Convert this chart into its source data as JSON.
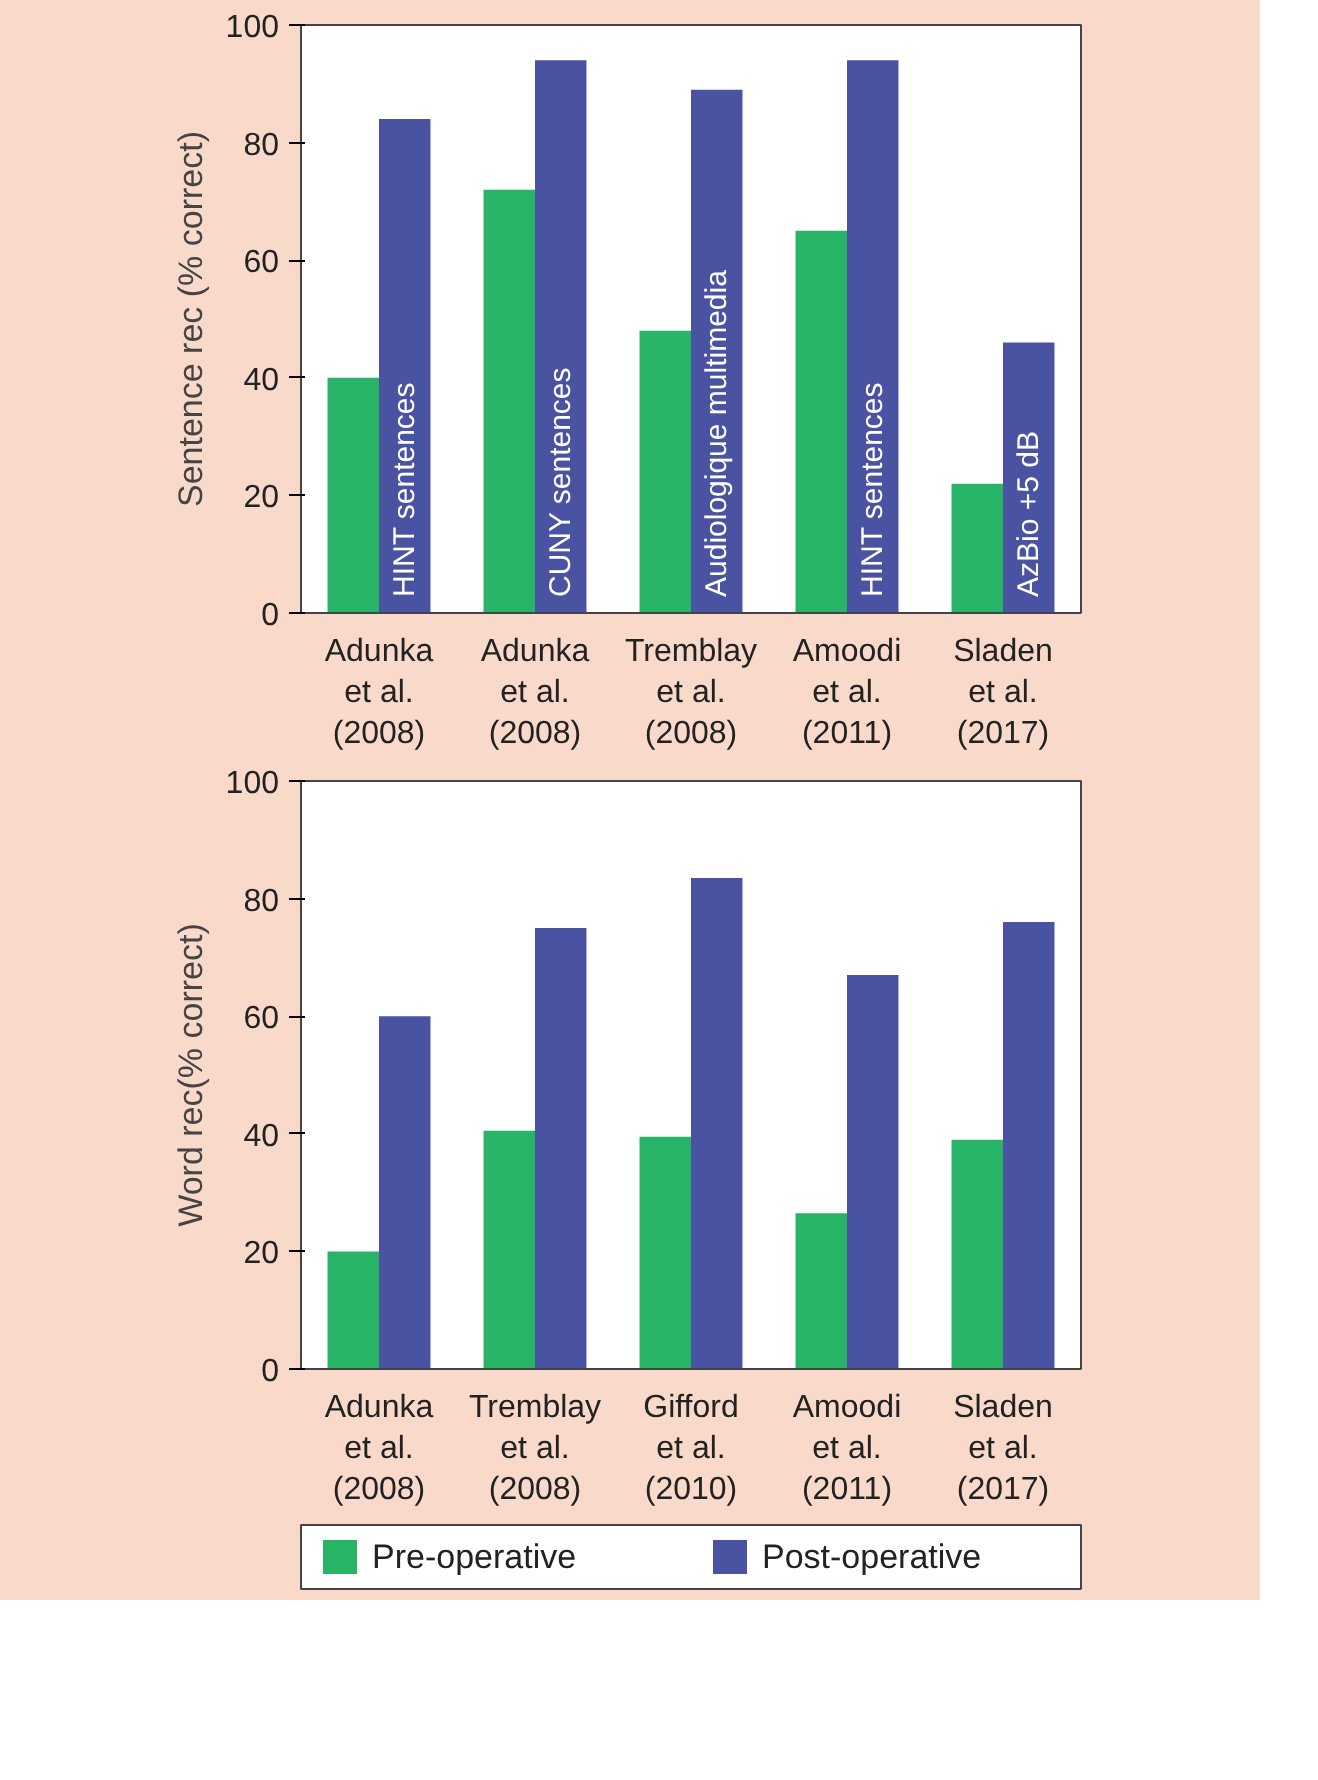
{
  "chart_data": [
    {
      "type": "bar",
      "ylabel": "Sentence rec (% correct)",
      "categories": [
        "Adunka\net al.\n(2008)",
        "Adunka\net al.\n(2008)",
        "Tremblay\net al.\n(2008)",
        "Amoodi\net al.\n(2011)",
        "Sladen\net al.\n(2017)"
      ],
      "series": [
        {
          "color": "#28b467",
          "values": [
            40,
            72,
            48,
            65,
            22
          ]
        },
        {
          "color": "#4a52a2",
          "values": [
            84,
            94,
            89,
            94,
            46
          ]
        }
      ],
      "annotations": [
        "HINT sentences",
        "CUNY sentences",
        "Audiologique multimedia",
        "HINT sentences",
        "AzBio +5 dB"
      ],
      "ylim": [
        0,
        100
      ],
      "yticks": [
        0,
        20,
        40,
        60,
        80,
        100
      ],
      "grid": false
    },
    {
      "type": "bar",
      "ylabel": "Word rec(% correct)",
      "categories": [
        "Adunka\net al.\n(2008)",
        "Tremblay\net al.\n(2008)",
        "Gifford\net al.\n(2010)",
        "Amoodi\net al.\n(2011)",
        "Sladen\net al.\n(2017)"
      ],
      "series": [
        {
          "name": "Pre-operative",
          "color": "#28b467",
          "values": [
            20,
            40.5,
            39.5,
            26.5,
            39
          ]
        },
        {
          "name": "Post-operative",
          "color": "#4a52a2",
          "values": [
            60,
            75,
            83.5,
            67,
            76
          ]
        }
      ],
      "ylim": [
        0,
        100
      ],
      "yticks": [
        0,
        20,
        40,
        60,
        80,
        100
      ],
      "grid": false,
      "legend": "bottom"
    }
  ]
}
